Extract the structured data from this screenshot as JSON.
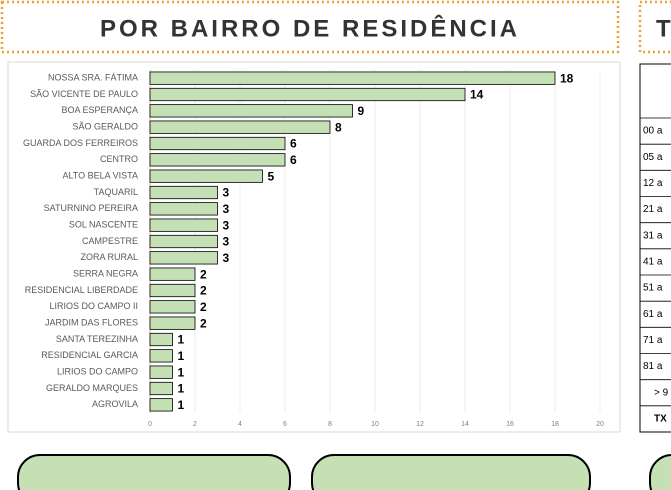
{
  "chart_data": {
    "type": "bar",
    "orientation": "horizontal",
    "title": "POR BAIRRO DE RESIDÊNCIA",
    "categories": [
      "NOSSA SRA. FÁTIMA",
      "SÃO VICENTE DE PAULO",
      "BOA ESPERANÇA",
      "SÃO GERALDO",
      "GUARDA DOS FERREIROS",
      "CENTRO",
      "ALTO BELA VISTA",
      "TAQUARIL",
      "SATURNINO PEREIRA",
      "SOL NASCENTE",
      "CAMPESTRE",
      "ZORA RURAL",
      "SERRA NEGRA",
      "RESIDENCIAL LIBERDADE",
      "LIRIOS DO CAMPO II",
      "JARDIM DAS FLORES",
      "SANTA TEREZINHA",
      "RESIDENCIAL GARCIA",
      "LIRIOS DO CAMPO",
      "GERALDO MARQUES",
      "AGROVILA"
    ],
    "values": [
      18,
      14,
      9,
      8,
      6,
      6,
      5,
      3,
      3,
      3,
      3,
      3,
      2,
      2,
      2,
      2,
      1,
      1,
      1,
      1,
      1
    ],
    "color": "#c5e0b4",
    "xlim": [
      0,
      20
    ],
    "xticks": [
      0,
      2,
      4,
      6,
      8,
      10,
      12,
      14,
      16,
      18,
      20
    ]
  },
  "side_table": {
    "title": "T",
    "rows": [
      "00 a",
      "05 a",
      "12 a",
      "21 a",
      "31 a",
      "41 a",
      "51 a",
      "61 a",
      "71 a",
      "81 a",
      "> 9",
      "TX"
    ]
  }
}
